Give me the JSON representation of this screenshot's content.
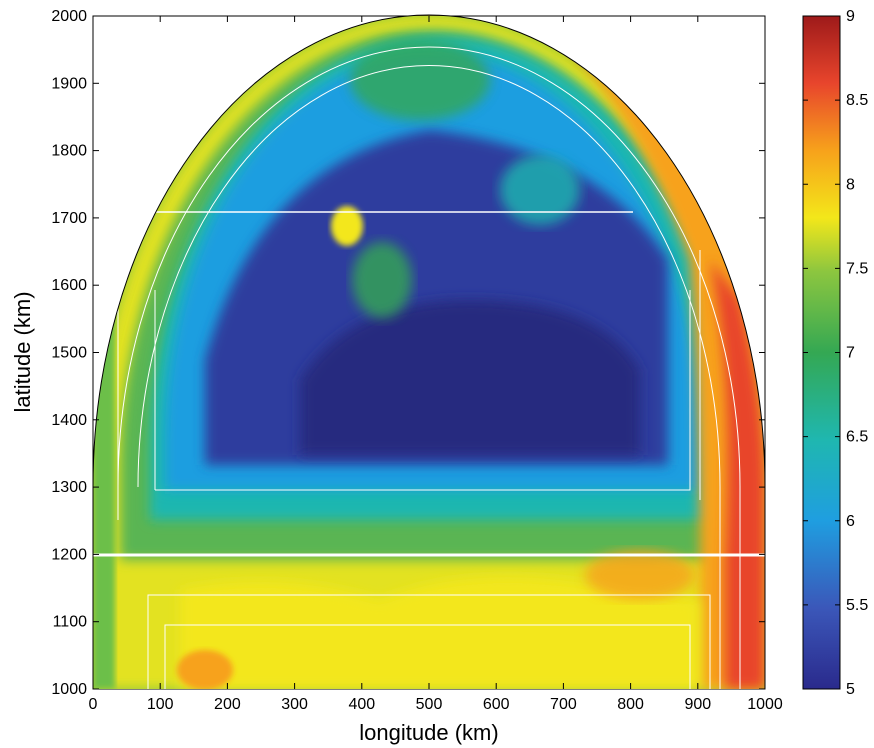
{
  "chart_data": {
    "type": "heatmap",
    "title": "",
    "xlabel": "longitude (km)",
    "ylabel": "latitude (km)",
    "xlim": [
      0,
      1000
    ],
    "ylim": [
      1000,
      2000
    ],
    "xticks": [
      0,
      100,
      200,
      300,
      400,
      500,
      600,
      700,
      800,
      900,
      1000
    ],
    "yticks": [
      1000,
      1100,
      1200,
      1300,
      1400,
      1500,
      1600,
      1700,
      1800,
      1900,
      2000
    ],
    "colorbar": {
      "min": 5,
      "max": 9,
      "ticks": [
        "5",
        "5.5",
        "6",
        "6.5",
        "7",
        "7.5",
        "8",
        "8.5",
        "9"
      ],
      "colormap": "jet",
      "colors": [
        "#2a2a8c",
        "#3b57b9",
        "#1f9ee0",
        "#1fb7b0",
        "#34a853",
        "#8cc63f",
        "#f3e71a",
        "#f7a21b",
        "#e8452c",
        "#9e1a1a"
      ]
    },
    "domain_shape": "rectangle 0-1000 km x 1000-1200 km topped by a semicircular cap reaching 2000 km",
    "overlays": {
      "white_divider_latitude": 1200,
      "white_box_line_latitude": 1710
    },
    "regions": [
      {
        "name": "northern basin interior",
        "lon_range": [
          150,
          880
        ],
        "lat_range": [
          1300,
          1720
        ],
        "approx_value": 5.4
      },
      {
        "name": "northern basin rim",
        "lon_range": [
          100,
          900
        ],
        "lat_range": [
          1250,
          1900
        ],
        "approx_value": 6.3
      },
      {
        "name": "eastern boundary current",
        "lon_range": [
          880,
          990
        ],
        "lat_range": [
          1100,
          1900
        ],
        "approx_value": 8.2
      },
      {
        "name": "southern basin",
        "lon_range": [
          100,
          900
        ],
        "lat_range": [
          1000,
          1200
        ],
        "approx_value": 7.4
      }
    ]
  }
}
